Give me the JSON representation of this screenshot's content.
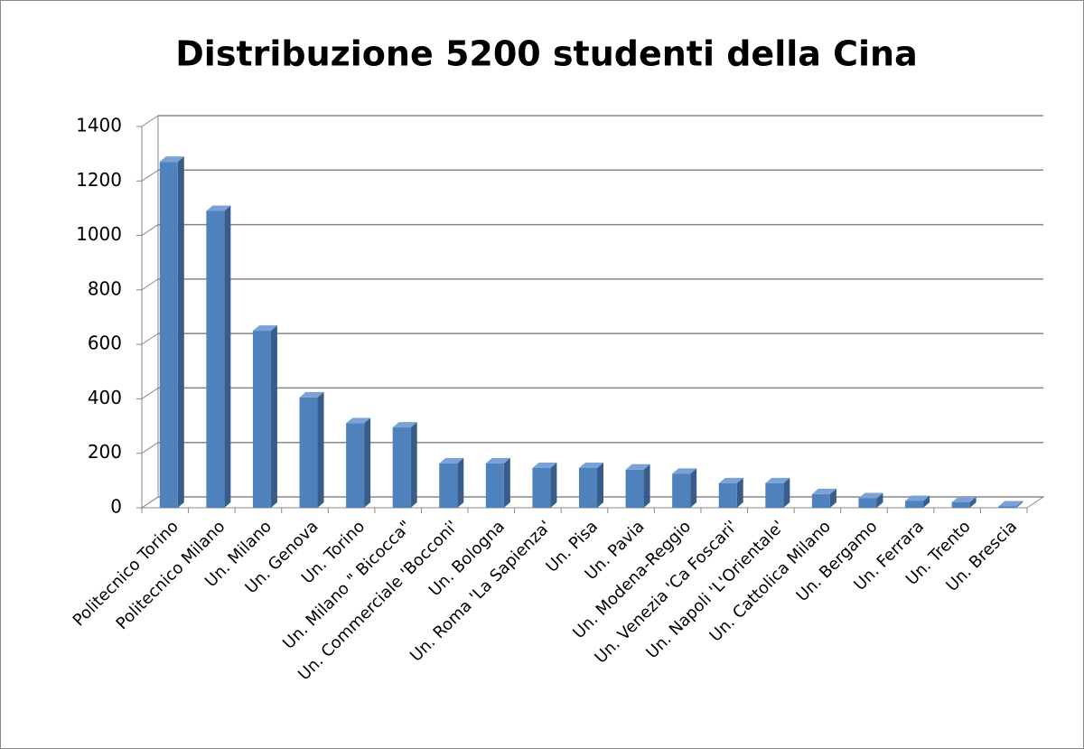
{
  "chart_data": {
    "type": "bar",
    "title": "Distribuzione 5200 studenti della Cina",
    "categories": [
      "Politecnico Torino",
      "Politecnico Milano",
      "Un. Milano",
      "Un. Genova",
      "Un. Torino",
      "Un. Milano \" Bicocca\"",
      "Un. Commerciale 'Bocconi'",
      "Un. Bologna",
      "Un. Roma 'La Sapienza'",
      "Un. Pisa",
      "Un. Pavia",
      "Un. Modena-Reggio",
      "Un. Venezia 'Ca Foscari'",
      "Un. Napoli 'L'Orientale'",
      "Un. Cattolica Milano",
      "Un. Bergamo",
      "Un. Ferrara",
      "Un. Trento",
      "Un. Brescia"
    ],
    "values": [
      1270,
      1090,
      650,
      405,
      310,
      295,
      163,
      163,
      146,
      146,
      140,
      125,
      90,
      90,
      50,
      35,
      25,
      20,
      5
    ],
    "color": "#4f81bd",
    "ylim": [
      0,
      1400
    ],
    "yticks": [
      0,
      200,
      400,
      600,
      800,
      1000,
      1200,
      1400
    ],
    "grid": true
  }
}
